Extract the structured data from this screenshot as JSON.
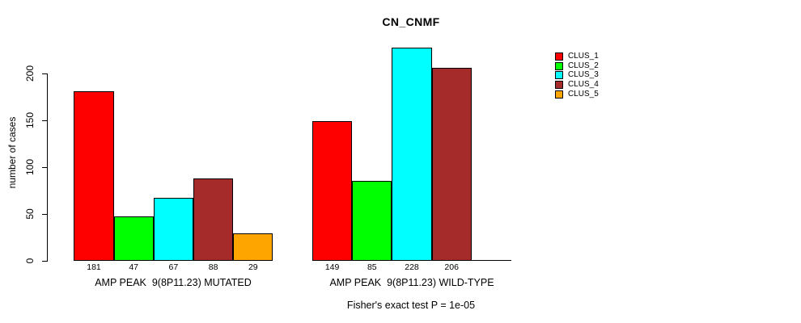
{
  "chart_data": {
    "type": "bar",
    "title": "CN_CNMF",
    "ylabel": "number of cases",
    "yticks": [
      0,
      50,
      100,
      150,
      200
    ],
    "ylim": [
      0,
      200
    ],
    "grid": false,
    "legend_position": "right",
    "clusters": [
      {
        "name": "CLUS_1",
        "color": "#FF0000"
      },
      {
        "name": "CLUS_2",
        "color": "#00FF00"
      },
      {
        "name": "CLUS_3",
        "color": "#00FFFF"
      },
      {
        "name": "CLUS_4",
        "color": "#A52A2A"
      },
      {
        "name": "CLUS_5",
        "color": "#FFA500"
      }
    ],
    "groups": [
      {
        "label": "AMP PEAK  9(8P11.23) MUTATED",
        "values": [
          181,
          47,
          67,
          88,
          29
        ]
      },
      {
        "label": "AMP PEAK  9(8P11.23) WILD-TYPE",
        "values": [
          149,
          85,
          228,
          206,
          0
        ]
      }
    ],
    "footer": "Fisher's exact test P = 1e-05"
  }
}
